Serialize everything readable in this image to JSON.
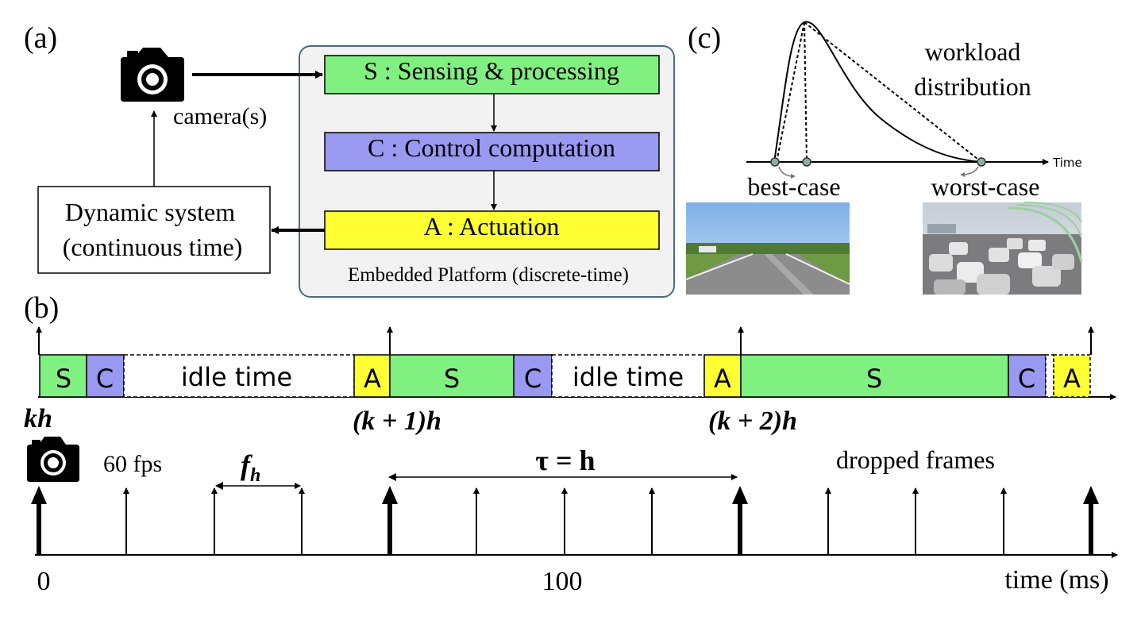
{
  "panel_a": {
    "label": "(a)",
    "camera_label": "camera(s)",
    "blocks": {
      "sensing": "S : Sensing & processing",
      "control": "C : Control computation",
      "actuation": "A : Actuation"
    },
    "platform_label": "Embedded Platform (discrete-time)",
    "system_line1": "Dynamic system",
    "system_line2": "(continuous time)"
  },
  "panel_b": {
    "label": "(b)",
    "segments": [
      "S",
      "C",
      "idle time",
      "A",
      "S",
      "C",
      "idle time",
      "A",
      "S",
      "C",
      "A"
    ],
    "period_labels": [
      "kh",
      "(k + 1)h",
      "(k + 2)h"
    ],
    "fps_label": "60 fps",
    "frame_interval_label": "f",
    "frame_interval_sub": "h",
    "tau_label": "τ = h",
    "dropped_label": "dropped frames",
    "axis_ticks": [
      "0",
      "100"
    ],
    "axis_label": "time (ms)"
  },
  "panel_c": {
    "label": "(c)",
    "curve_label_line1": "workload",
    "curve_label_line2": "distribution",
    "axis_label": "Time",
    "best_label": "best-case",
    "worst_label": "worst-case"
  },
  "colors": {
    "sense": "#80f080",
    "control": "#9999f2",
    "actuate": "#ffff33",
    "platform_bg": "#f2f2f2",
    "platform_border": "#4a6a8a",
    "marker": "#8fb0a0"
  },
  "icons": [
    "camera-icon",
    "camera-icon-small"
  ]
}
